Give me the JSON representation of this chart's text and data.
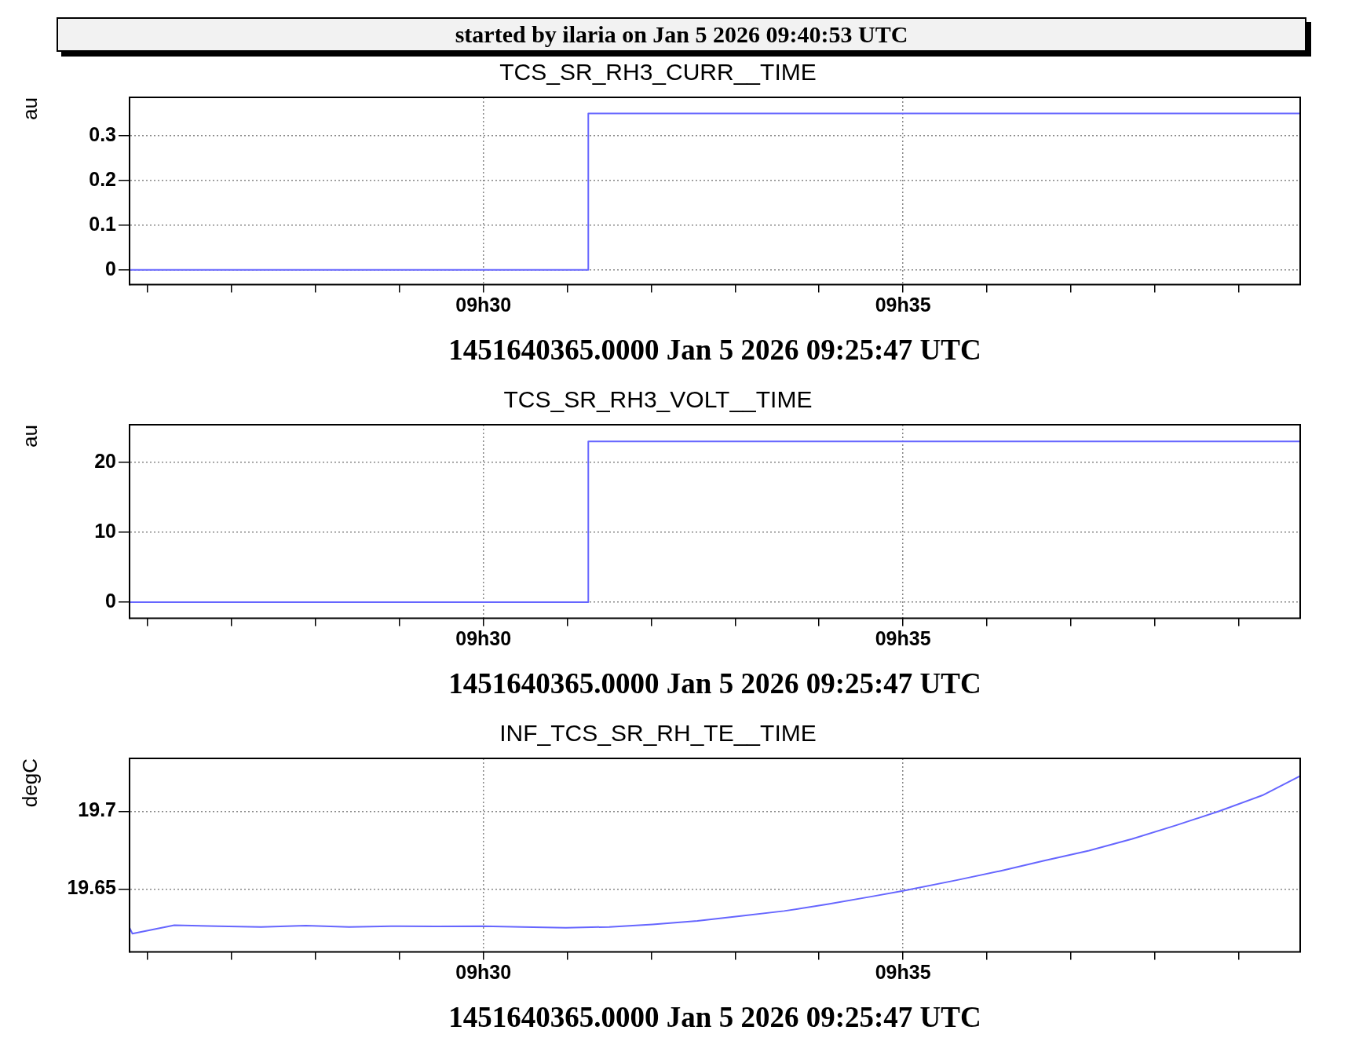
{
  "chart_data": [
    {
      "type": "step",
      "title": "TCS_SR_RH3_CURR__TIME",
      "xlabel": "1451640365.0000 Jan 5 2026 09:25:47 UTC",
      "ylabel": "au",
      "annotations": [
        "started by ilaria on Jan  5 2026 09:40:53 UTC"
      ],
      "x": [
        "2026-01-05T09:25:47",
        "2026-01-05T09:31:15",
        "2026-01-05T09:39:44"
      ],
      "series": [
        {
          "color": "#6666ff",
          "values": [
            0,
            0.35,
            0.35
          ]
        }
      ],
      "xlim": [
        "2026-01-05T09:25:47",
        "2026-01-05T09:39:44"
      ],
      "xticks": [
        {
          "value": "2026-01-05T09:26",
          "label": null
        },
        {
          "value": "2026-01-05T09:27",
          "label": null
        },
        {
          "value": "2026-01-05T09:28",
          "label": null
        },
        {
          "value": "2026-01-05T09:29",
          "label": null
        },
        {
          "value": "2026-01-05T09:30",
          "label": "09h30"
        },
        {
          "value": "2026-01-05T09:31",
          "label": null
        },
        {
          "value": "2026-01-05T09:32",
          "label": null
        },
        {
          "value": "2026-01-05T09:33",
          "label": null
        },
        {
          "value": "2026-01-05T09:34",
          "label": null
        },
        {
          "value": "2026-01-05T09:35",
          "label": "09h35"
        },
        {
          "value": "2026-01-05T09:36",
          "label": null
        },
        {
          "value": "2026-01-05T09:37",
          "label": null
        },
        {
          "value": "2026-01-05T09:38",
          "label": null
        },
        {
          "value": "2026-01-05T09:39",
          "label": null
        }
      ],
      "ylim": [
        -0.033,
        0.386
      ],
      "yticks": [
        0,
        0.1,
        0.2,
        0.3
      ],
      "grid": true,
      "legend": false,
      "marker": "none",
      "line_style": "solid"
    },
    {
      "type": "step",
      "title": "TCS_SR_RH3_VOLT__TIME",
      "xlabel": "1451640365.0000 Jan 5 2026 09:25:47 UTC",
      "ylabel": "au",
      "x": [
        "2026-01-05T09:25:47",
        "2026-01-05T09:31:15",
        "2026-01-05T09:39:44"
      ],
      "series": [
        {
          "color": "#6666ff",
          "values": [
            0,
            23,
            23
          ]
        }
      ],
      "xlim": [
        "2026-01-05T09:25:47",
        "2026-01-05T09:39:44"
      ],
      "xticks": [
        {
          "value": "2026-01-05T09:26",
          "label": null
        },
        {
          "value": "2026-01-05T09:27",
          "label": null
        },
        {
          "value": "2026-01-05T09:28",
          "label": null
        },
        {
          "value": "2026-01-05T09:29",
          "label": null
        },
        {
          "value": "2026-01-05T09:30",
          "label": "09h30"
        },
        {
          "value": "2026-01-05T09:31",
          "label": null
        },
        {
          "value": "2026-01-05T09:32",
          "label": null
        },
        {
          "value": "2026-01-05T09:33",
          "label": null
        },
        {
          "value": "2026-01-05T09:34",
          "label": null
        },
        {
          "value": "2026-01-05T09:35",
          "label": "09h35"
        },
        {
          "value": "2026-01-05T09:36",
          "label": null
        },
        {
          "value": "2026-01-05T09:37",
          "label": null
        },
        {
          "value": "2026-01-05T09:38",
          "label": null
        },
        {
          "value": "2026-01-05T09:39",
          "label": null
        }
      ],
      "ylim": [
        -2.3,
        25.4
      ],
      "yticks": [
        0,
        10,
        20
      ],
      "grid": true,
      "legend": false,
      "marker": "none",
      "line_style": "solid"
    },
    {
      "type": "line",
      "title": "INF_TCS_SR_RH_TE__TIME",
      "xlabel": "1451640365.0000 Jan 5 2026 09:25:47 UTC",
      "ylabel": "degC",
      "x": [
        "2026-01-05T09:25:47",
        "2026-01-05T09:25:49",
        "2026-01-05T09:26:19",
        "2026-01-05T09:26:50",
        "2026-01-05T09:27:21",
        "2026-01-05T09:27:53",
        "2026-01-05T09:28:24",
        "2026-01-05T09:28:54",
        "2026-01-05T09:29:26",
        "2026-01-05T09:30:00",
        "2026-01-05T09:30:28",
        "2026-01-05T09:30:59",
        "2026-01-05T09:31:30",
        "2026-01-05T09:32:01",
        "2026-01-05T09:32:33",
        "2026-01-05T09:33:04",
        "2026-01-05T09:33:35",
        "2026-01-05T09:34:06",
        "2026-01-05T09:34:37",
        "2026-01-05T09:35:00",
        "2026-01-05T09:35:39",
        "2026-01-05T09:36:10",
        "2026-01-05T09:36:41",
        "2026-01-05T09:37:13",
        "2026-01-05T09:37:44",
        "2026-01-05T09:38:15",
        "2026-01-05T09:38:46",
        "2026-01-05T09:39:17",
        "2026-01-05T09:39:44"
      ],
      "series": [
        {
          "color": "#6666ff",
          "values": [
            19.6253,
            19.6215,
            19.6269,
            19.6263,
            19.6258,
            19.6266,
            19.6258,
            19.6263,
            19.6261,
            19.6263,
            19.6258,
            19.6253,
            19.6258,
            19.6274,
            19.6296,
            19.6328,
            19.636,
            19.6403,
            19.6452,
            19.6489,
            19.6559,
            19.6618,
            19.6683,
            19.6747,
            19.6823,
            19.6909,
            19.7,
            19.7102,
            19.7226
          ]
        }
      ],
      "xlim": [
        "2026-01-05T09:25:47",
        "2026-01-05T09:39:44"
      ],
      "xticks": [
        {
          "value": "2026-01-05T09:26",
          "label": null
        },
        {
          "value": "2026-01-05T09:27",
          "label": null
        },
        {
          "value": "2026-01-05T09:28",
          "label": null
        },
        {
          "value": "2026-01-05T09:29",
          "label": null
        },
        {
          "value": "2026-01-05T09:30",
          "label": "09h30"
        },
        {
          "value": "2026-01-05T09:31",
          "label": null
        },
        {
          "value": "2026-01-05T09:32",
          "label": null
        },
        {
          "value": "2026-01-05T09:33",
          "label": null
        },
        {
          "value": "2026-01-05T09:34",
          "label": null
        },
        {
          "value": "2026-01-05T09:35",
          "label": "09h35"
        },
        {
          "value": "2026-01-05T09:36",
          "label": null
        },
        {
          "value": "2026-01-05T09:37",
          "label": null
        },
        {
          "value": "2026-01-05T09:38",
          "label": null
        },
        {
          "value": "2026-01-05T09:39",
          "label": null
        }
      ],
      "ylim": [
        19.6097,
        19.7339
      ],
      "yticks": [
        19.65,
        19.7
      ],
      "grid": true,
      "legend": false,
      "marker": "none",
      "line_style": "solid"
    }
  ]
}
